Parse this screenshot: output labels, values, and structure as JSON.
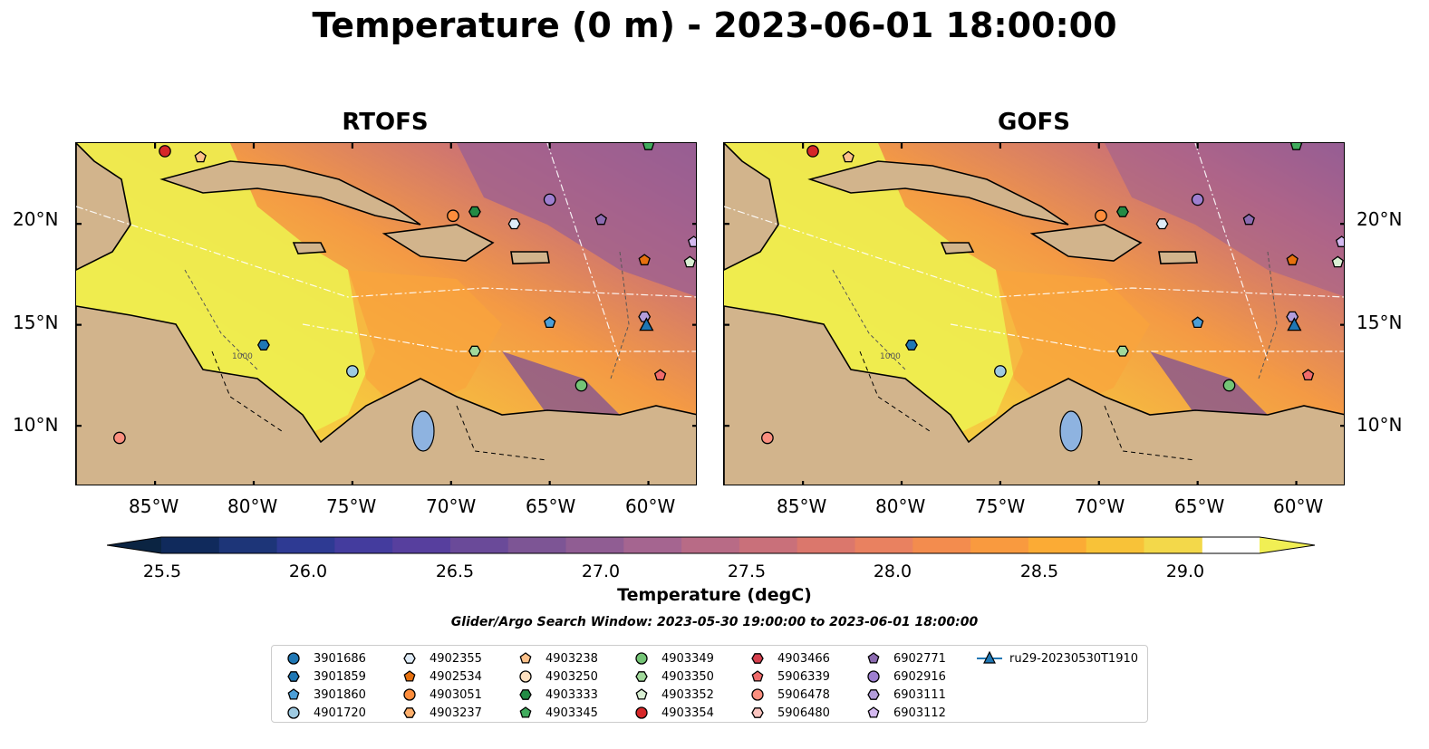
{
  "title": "Temperature (0 m) - 2023-06-01 18:00:00",
  "panels": [
    {
      "title": "RTOFS"
    },
    {
      "title": "GOFS"
    }
  ],
  "axes": {
    "lon_ticks": [
      "85°W",
      "80°W",
      "75°W",
      "70°W",
      "65°W",
      "60°W"
    ],
    "lat_ticks": [
      "20°N",
      "15°N",
      "10°N"
    ]
  },
  "colorbar": {
    "label": "Temperature (degC)",
    "ticks": [
      "25.5",
      "26.0",
      "26.5",
      "27.0",
      "27.5",
      "28.0",
      "28.5",
      "29.0"
    ],
    "colors": [
      "#0b2442",
      "#102a5c",
      "#1d3578",
      "#2e3a93",
      "#443c9e",
      "#573f9e",
      "#6a4a99",
      "#7d5595",
      "#905d93",
      "#a56590",
      "#b86b86",
      "#c9707a",
      "#db776c",
      "#e98160",
      "#f38c4e",
      "#f99a3f",
      "#fbab35",
      "#f8c238",
      "#f3d84a",
      "#f1ef54"
    ]
  },
  "search_window": "Glider/Argo Search Window: 2023-05-30 19:00:00 to 2023-06-01 18:00:00",
  "contour_label": "1000",
  "legend": [
    {
      "label": "3901686",
      "marker": "circle",
      "color": "#1f77b4"
    },
    {
      "label": "3901859",
      "marker": "hexagon",
      "color": "#1f77b4"
    },
    {
      "label": "3901860",
      "marker": "pentagon",
      "color": "#4c9fd8"
    },
    {
      "label": "4901720",
      "marker": "circle",
      "color": "#9ecae1"
    },
    {
      "label": "4902355",
      "marker": "hexagon",
      "color": "#deebf7"
    },
    {
      "label": "4902534",
      "marker": "pentagon",
      "color": "#e6700e"
    },
    {
      "label": "4903051",
      "marker": "circle",
      "color": "#fd8d3c"
    },
    {
      "label": "4903237",
      "marker": "hexagon",
      "color": "#fdae6b"
    },
    {
      "label": "4903238",
      "marker": "pentagon",
      "color": "#fdc18a"
    },
    {
      "label": "4903250",
      "marker": "circle",
      "color": "#fee0c0"
    },
    {
      "label": "4903333",
      "marker": "hexagon",
      "color": "#238b45"
    },
    {
      "label": "4903345",
      "marker": "pentagon",
      "color": "#41ab5d"
    },
    {
      "label": "4903349",
      "marker": "circle",
      "color": "#74c476"
    },
    {
      "label": "4903350",
      "marker": "hexagon",
      "color": "#a1d99b"
    },
    {
      "label": "4903352",
      "marker": "pentagon",
      "color": "#d9f0d3"
    },
    {
      "label": "4903354",
      "marker": "circle",
      "color": "#d62728"
    },
    {
      "label": "4903466",
      "marker": "hexagon",
      "color": "#d6404e"
    },
    {
      "label": "5906339",
      "marker": "pentagon",
      "color": "#f06b6b"
    },
    {
      "label": "5906478",
      "marker": "circle",
      "color": "#fb8f7f"
    },
    {
      "label": "5906480",
      "marker": "hexagon",
      "color": "#fcc5c0"
    },
    {
      "label": "6902771",
      "marker": "pentagon",
      "color": "#8c6bb1"
    },
    {
      "label": "6902916",
      "marker": "circle",
      "color": "#9e7fd0"
    },
    {
      "label": "6903111",
      "marker": "hexagon",
      "color": "#b39ddb"
    },
    {
      "label": "6903112",
      "marker": "pentagon",
      "color": "#d4b9f0"
    },
    {
      "label": "ru29-20230530T1910",
      "marker": "triangle",
      "color": "#1f77b4"
    }
  ],
  "chart_data": {
    "type": "heatmap",
    "title": "Temperature (0 m) - 2023-06-01 18:00:00",
    "variable": "Temperature (degC)",
    "colorbar_range": [
      25.5,
      29.0
    ],
    "extend": "both",
    "lon_range": [
      -89.0,
      -57.5
    ],
    "lat_range": [
      7.0,
      24.0
    ],
    "floats": [
      {
        "id": "5906478",
        "lon": -86.8,
        "lat": 9.4
      },
      {
        "id": "4903354",
        "lon": -84.5,
        "lat": 23.6
      },
      {
        "id": "4903238",
        "lon": -82.7,
        "lat": 23.3
      },
      {
        "id": "3901859",
        "lon": -79.5,
        "lat": 14.0
      },
      {
        "id": "4901720",
        "lon": -75.0,
        "lat": 12.7
      },
      {
        "id": "4903051",
        "lon": -69.9,
        "lat": 20.4
      },
      {
        "id": "4903333",
        "lon": -68.8,
        "lat": 20.6
      },
      {
        "id": "4903350",
        "lon": -68.8,
        "lat": 13.7
      },
      {
        "id": "4902355",
        "lon": -66.8,
        "lat": 20.0
      },
      {
        "id": "6902916",
        "lon": -65.0,
        "lat": 21.2
      },
      {
        "id": "3901860",
        "lon": -65.0,
        "lat": 15.1
      },
      {
        "id": "4903349",
        "lon": -63.4,
        "lat": 12.0
      },
      {
        "id": "6902771",
        "lon": -62.4,
        "lat": 20.2
      },
      {
        "id": "4902534",
        "lon": -60.2,
        "lat": 18.2
      },
      {
        "id": "6903111",
        "lon": -60.2,
        "lat": 15.4
      },
      {
        "id": "5906339",
        "lon": -59.4,
        "lat": 12.5
      },
      {
        "id": "4903352",
        "lon": -57.9,
        "lat": 18.1
      },
      {
        "id": "6903112",
        "lon": -57.7,
        "lat": 19.1
      },
      {
        "id": "4903345",
        "lon": -60.0,
        "lat": 23.9
      },
      {
        "id": "ru29-20230530T1910",
        "lon": -60.1,
        "lat": 15.0
      }
    ]
  }
}
